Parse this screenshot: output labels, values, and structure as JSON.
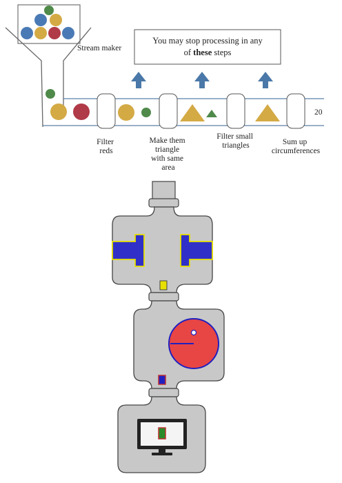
{
  "pipeline": {
    "stream_maker_label": "Stream maker",
    "note_line1": "You may stop processing in any",
    "note_line2_prefix": "of ",
    "note_line2_bold": "these",
    "note_line2_suffix": " steps",
    "result_value": "20",
    "steps": [
      {
        "line1": "Filter",
        "line2": "reds"
      },
      {
        "line1": "Make them",
        "line2": "triangle",
        "line3": "with same",
        "line4": "area"
      },
      {
        "line1": "Filter small",
        "line2": "triangles"
      },
      {
        "line1": "Sum up",
        "line2": "circumferences"
      }
    ]
  },
  "colors": {
    "blue_ball": "#4a7ab5",
    "yellow_ball": "#d4aa45",
    "red_ball": "#b03a48",
    "green_ball": "#4f8a4a",
    "arrow": "#4a78a8",
    "machine_body": "#c8c8c8",
    "machine_outline": "#444444",
    "piston": "#3030c8",
    "piston_outline": "#e8e000",
    "gauge": "#e84545",
    "gauge_outline": "#2020c0",
    "screen_chip": "#2a8a2a",
    "screen_chip_outline": "#c03030"
  },
  "icons": {
    "funnel": "funnel-icon",
    "machine": "stream-machine-icon",
    "gauge": "gauge-icon",
    "monitor": "monitor-icon"
  }
}
